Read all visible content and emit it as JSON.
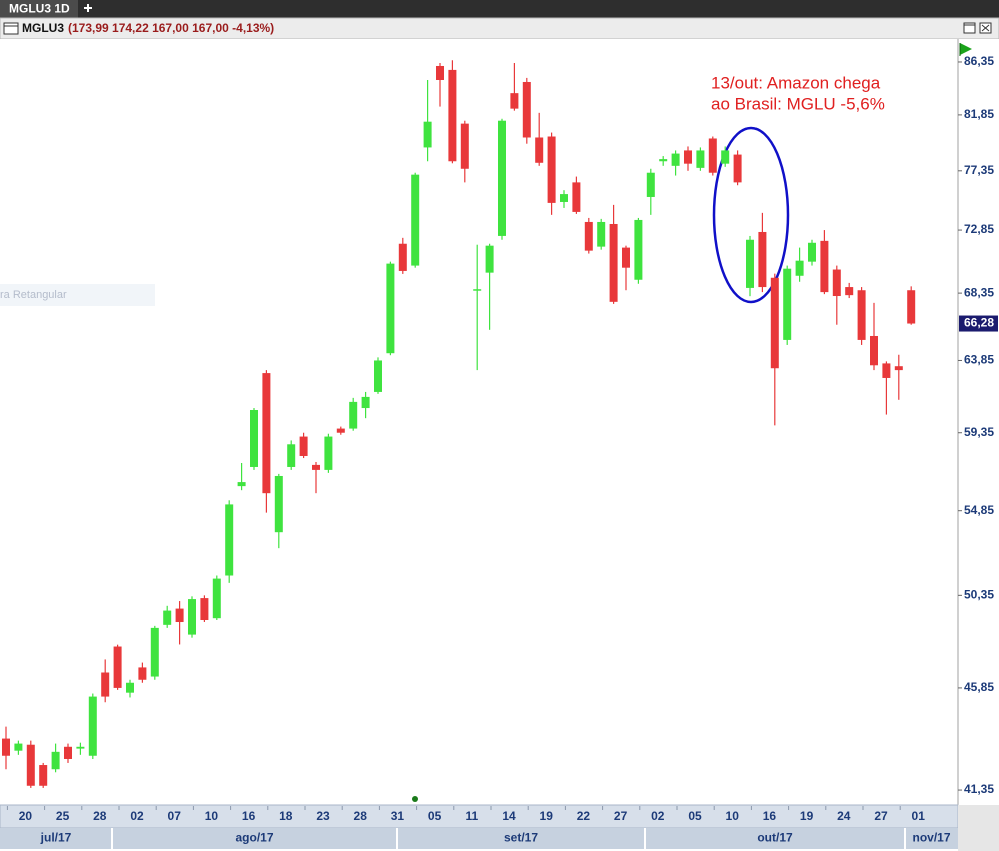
{
  "tab": {
    "title": "MGLU3 1D"
  },
  "chart_data": {
    "type": "candlestick",
    "title": "MGLU3",
    "subtitle": "(173,99 174,22 167,00 167,00 -4,13%)",
    "log_scale": true,
    "grid": false,
    "up_color": "#3fe33f",
    "down_color": "#e8383a",
    "categories": [
      null,
      "20",
      null,
      null,
      "25",
      null,
      null,
      "28",
      null,
      null,
      "02",
      null,
      null,
      "07",
      null,
      null,
      "10",
      null,
      null,
      "16",
      null,
      null,
      "18",
      null,
      null,
      "23",
      null,
      null,
      "28",
      null,
      null,
      "31",
      null,
      null,
      "05",
      null,
      null,
      "11",
      null,
      null,
      "14",
      null,
      null,
      "19",
      null,
      null,
      "22",
      null,
      null,
      "27",
      null,
      null,
      "02",
      null,
      null,
      "05",
      null,
      null,
      "10",
      null,
      null,
      "16",
      null,
      null,
      "19",
      null,
      null,
      "24",
      null,
      null,
      "27",
      null,
      null,
      "01"
    ],
    "months": [
      "jul/17",
      "ago/17",
      "set/17",
      "out/17",
      "nov/17"
    ],
    "open": [
      43.56,
      43.03,
      43.29,
      42.41,
      42.23,
      43.2,
      43.12,
      42.81,
      46.57,
      47.81,
      45.63,
      46.81,
      46.38,
      48.87,
      49.68,
      48.39,
      50.21,
      49.2,
      51.37,
      56.23,
      57.33,
      63.04,
      53.67,
      57.33,
      59.12,
      57.45,
      57.16,
      59.6,
      59.6,
      60.85,
      61.85,
      64.32,
      71.85,
      70.28,
      79.2,
      86.0,
      85.66,
      81.13,
      68.55,
      69.78,
      72.42,
      83.67,
      84.62,
      80.0,
      80.08,
      74.95,
      76.45,
      73.45,
      71.64,
      73.3,
      71.57,
      69.28,
      75.33,
      78.1,
      77.74,
      78.96,
      77.58,
      79.92,
      77.91,
      78.63,
      68.71,
      72.71,
      69.42,
      65.19,
      69.56,
      70.56,
      72.06,
      70.0,
      68.77,
      68.55,
      65.45,
      63.66,
      63.48,
      68.55
    ],
    "high": [
      44.09,
      43.47,
      43.47,
      42.5,
      43.34,
      43.34,
      43.38,
      45.59,
      47.19,
      47.9,
      46.23,
      47.04,
      48.82,
      49.82,
      50.06,
      50.3,
      50.35,
      51.37,
      55.43,
      57.56,
      60.85,
      63.23,
      56.93,
      58.89,
      59.35,
      57.62,
      59.29,
      59.72,
      61.48,
      61.85,
      64.05,
      70.56,
      72.28,
      77.2,
      84.79,
      86.26,
      86.5,
      81.37,
      71.78,
      71.85,
      81.53,
      86.26,
      84.97,
      82.02,
      80.4,
      75.85,
      76.9,
      73.75,
      73.68,
      74.73,
      71.71,
      73.75,
      77.51,
      78.51,
      78.96,
      79.28,
      79.2,
      80.08,
      79.28,
      78.96,
      72.42,
      74.13,
      69.71,
      70.28,
      71.57,
      72.14,
      72.85,
      70.28,
      69.06,
      68.77,
      67.68,
      63.79,
      64.22,
      68.82
    ],
    "low": [
      42.23,
      42.85,
      41.44,
      41.44,
      42.1,
      42.5,
      42.85,
      42.67,
      45.19,
      45.76,
      45.41,
      46.09,
      46.23,
      48.72,
      47.91,
      48.24,
      49.01,
      49.11,
      50.99,
      56.0,
      57.16,
      54.74,
      52.81,
      57.16,
      57.85,
      55.83,
      56.99,
      59.23,
      59.47,
      60.23,
      61.73,
      64.19,
      69.69,
      70.13,
      78.1,
      82.54,
      77.94,
      76.45,
      63.23,
      65.86,
      72.14,
      82.2,
      79.5,
      77.74,
      73.98,
      74.5,
      74.05,
      71.14,
      71.42,
      67.61,
      68.55,
      69.0,
      73.98,
      77.74,
      76.98,
      77.35,
      77.35,
      76.98,
      77.66,
      76.23,
      68.14,
      68.42,
      59.79,
      64.86,
      69.14,
      70.28,
      68.28,
      66.2,
      68.01,
      64.86,
      63.23,
      60.45,
      61.36,
      66.2
    ],
    "close": [
      42.81,
      43.34,
      41.53,
      41.53,
      42.98,
      42.67,
      43.2,
      45.45,
      45.45,
      45.85,
      46.09,
      46.23,
      48.72,
      49.58,
      49.01,
      50.16,
      49.11,
      51.21,
      55.2,
      56.46,
      60.73,
      55.83,
      56.81,
      58.66,
      57.97,
      57.16,
      59.12,
      59.35,
      61.23,
      61.54,
      63.85,
      70.42,
      69.9,
      77.05,
      81.29,
      84.79,
      78.1,
      77.51,
      68.62,
      71.71,
      81.37,
      82.37,
      80.0,
      77.98,
      74.88,
      75.55,
      74.2,
      71.35,
      73.45,
      67.75,
      70.13,
      73.6,
      77.2,
      78.27,
      78.71,
      77.91,
      78.96,
      77.2,
      78.96,
      76.45,
      72.14,
      68.77,
      63.35,
      70.06,
      70.63,
      71.92,
      68.42,
      68.15,
      68.21,
      65.19,
      63.54,
      62.73,
      63.23,
      66.28
    ],
    "ylim": [
      40.73,
      88.29
    ],
    "yticks": [
      {
        "value": 86.35,
        "label": "86,35"
      },
      {
        "value": 81.85,
        "label": "81,85"
      },
      {
        "value": 77.35,
        "label": "77,35"
      },
      {
        "value": 72.85,
        "label": "72,85"
      },
      {
        "value": 68.35,
        "label": "68,35"
      },
      {
        "value": 63.85,
        "label": "63,85"
      },
      {
        "value": 59.35,
        "label": "59,35"
      },
      {
        "value": 54.85,
        "label": "54,85"
      },
      {
        "value": 50.35,
        "label": "50,35"
      },
      {
        "value": 45.85,
        "label": "45,85"
      },
      {
        "value": 41.35,
        "label": "41,35"
      }
    ],
    "last_price": {
      "value": 66.28,
      "label": "66,28"
    },
    "annotation": [
      "13/out: Amazon chega",
      "ao Brasil: MGLU -5,6%"
    ],
    "annotation_color": "#e02020",
    "ghost_label": "ra Retangular"
  }
}
